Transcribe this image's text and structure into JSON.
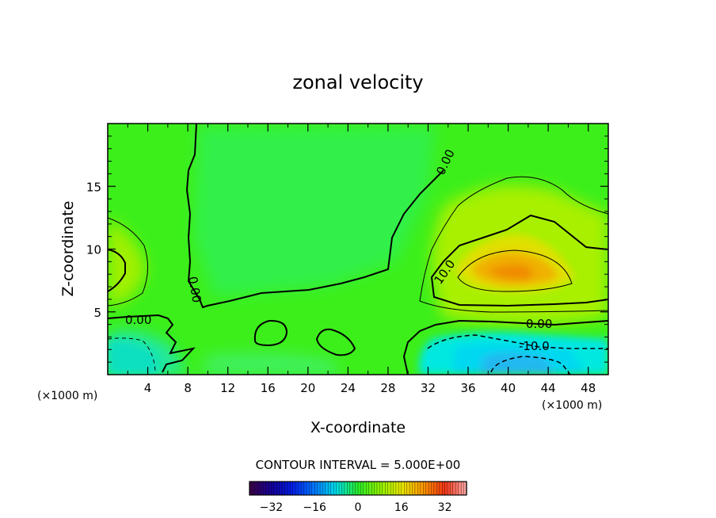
{
  "chart_data": {
    "type": "heatmap",
    "title": "zonal velocity",
    "xlabel": "X-coordinate",
    "ylabel": "Z-coordinate",
    "x_unit": "(×1000 m)",
    "xlim": [
      0,
      50
    ],
    "ylim": [
      0,
      20
    ],
    "x_ticks": [
      "4",
      "8",
      "12",
      "16",
      "20",
      "24",
      "28",
      "32",
      "36",
      "40",
      "44",
      "48"
    ],
    "y_ticks": [
      "5",
      "10",
      "15"
    ],
    "contour_interval_text": "CONTOUR INTERVAL = 5.000E+00",
    "contour_labels": [
      "0.00",
      "0.00",
      "0.00",
      "0.00",
      "10.0",
      "-10.0"
    ],
    "colorbar_ticks": [
      "-32",
      "-16",
      "0",
      "16",
      "32"
    ],
    "colorbar_range": [
      -40,
      40
    ],
    "features": [
      {
        "name": "positive jet core",
        "x": 40,
        "z": 8,
        "max_value": 25
      },
      {
        "name": "negative core near surface",
        "x": 40,
        "z": 1,
        "min_value": -20
      },
      {
        "name": "weak positive left edge",
        "x": 1,
        "z": 8,
        "value": 7
      }
    ]
  }
}
